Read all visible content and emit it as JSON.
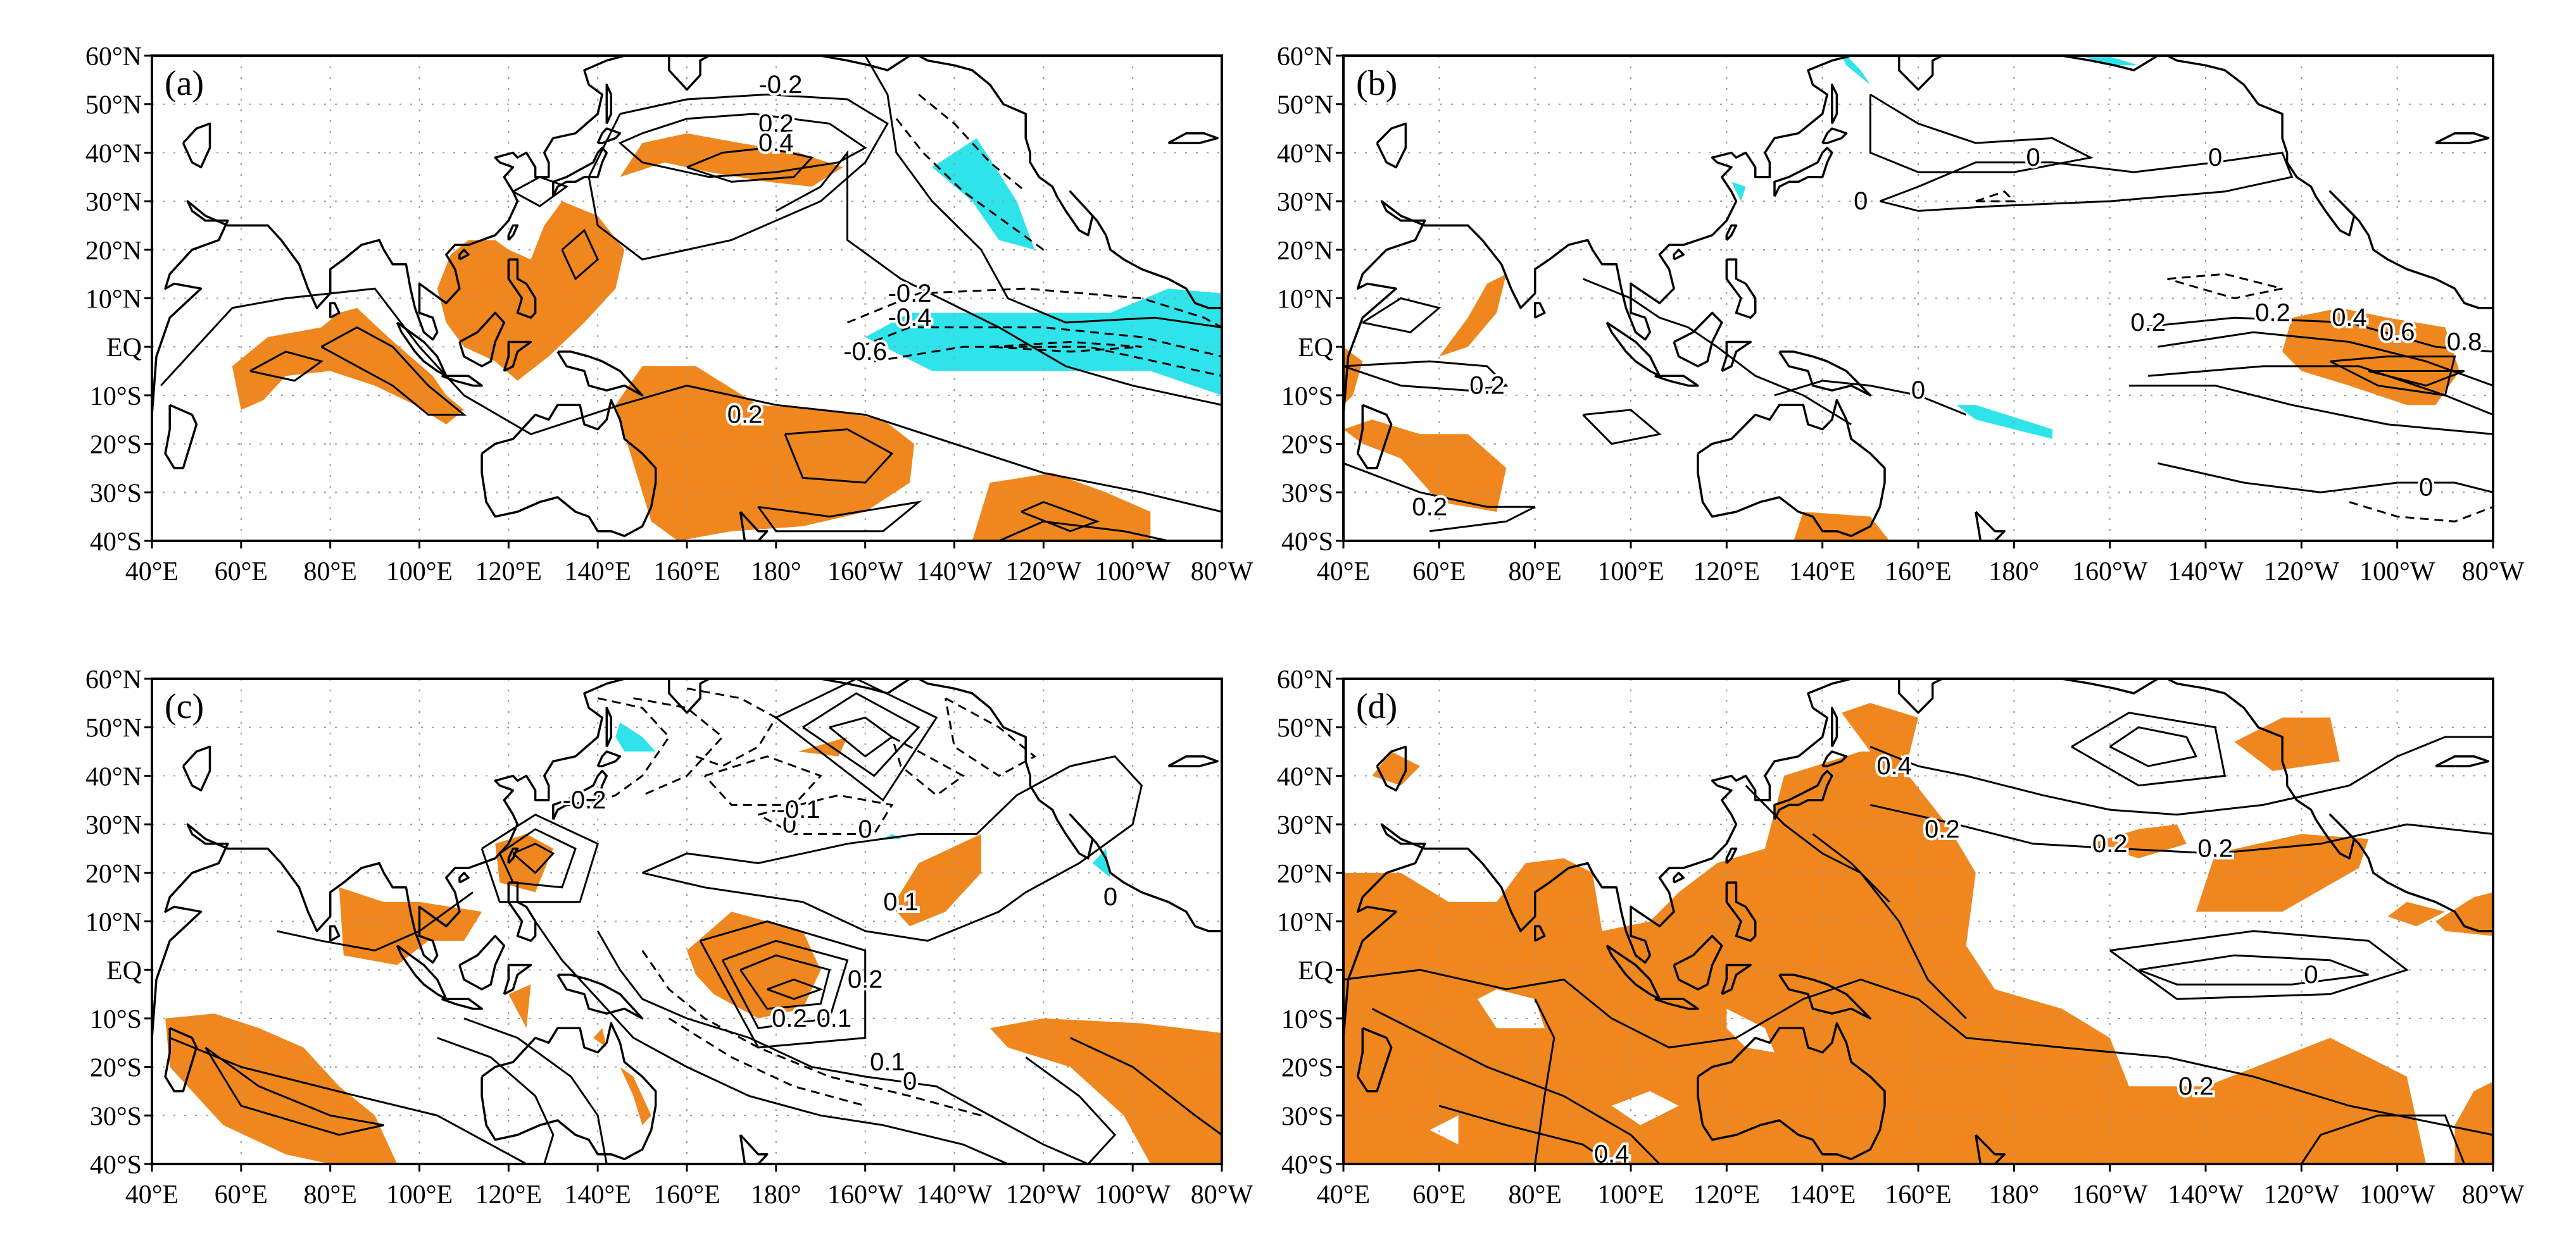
{
  "figure": {
    "lat_ticks": [
      "60°N",
      "50°N",
      "40°N",
      "30°N",
      "20°N",
      "10°N",
      "EQ",
      "10°S",
      "20°S",
      "30°S",
      "40°S"
    ],
    "lon_ticks": [
      "40°E",
      "60°E",
      "80°E",
      "100°E",
      "120°E",
      "140°E",
      "160°E",
      "180°",
      "160°W",
      "140°W",
      "120°W",
      "100°W",
      "80°W"
    ],
    "colors": {
      "positive_shading": "#f0871e",
      "negative_shading": "#2fe3ea",
      "contour": "#000000",
      "coast": "#000000",
      "grid": "#9a9a9a"
    },
    "panels": [
      {
        "tag": "(a)",
        "contour_labels": [
          "-0.2",
          "0.2",
          "0.4",
          "-0.2",
          "-0.4",
          "-0.6",
          "0.2"
        ],
        "shading": {
          "positive": true,
          "negative": true
        }
      },
      {
        "tag": "(b)",
        "contour_labels": [
          "0.2",
          "0",
          "0",
          "0",
          "0.2",
          "0.4",
          "0.6",
          "0.8",
          "0.2",
          "0",
          "0",
          "0.2"
        ],
        "shading": {
          "positive": true,
          "negative": true
        }
      },
      {
        "tag": "(c)",
        "contour_labels": [
          "-0.2",
          "0",
          "-0.1",
          "0",
          "0",
          "0.1",
          "0.2",
          "0.2",
          "0.1",
          "0.1",
          "0"
        ],
        "shading": {
          "positive": true,
          "negative": true
        }
      },
      {
        "tag": "(d)",
        "contour_labels": [
          "0.4",
          "0.2",
          "0.2",
          "0.2",
          "0",
          "0.2",
          "0.4"
        ],
        "shading": {
          "positive": true,
          "negative": false
        }
      }
    ]
  }
}
